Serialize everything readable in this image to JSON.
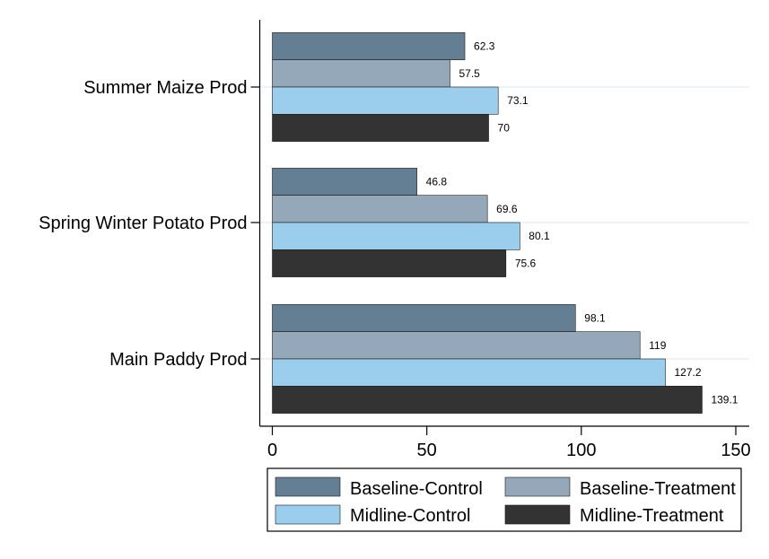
{
  "chart_data": {
    "type": "bar",
    "orientation": "horizontal",
    "categories": [
      "Summer Maize Prod",
      "Spring Winter Potato Prod",
      "Main Paddy Prod"
    ],
    "series": [
      {
        "name": "Baseline-Control",
        "color": "#647f94",
        "values": [
          62.3,
          46.8,
          98.1
        ]
      },
      {
        "name": "Baseline-Treatment",
        "color": "#94a8b9",
        "values": [
          57.5,
          69.6,
          119
        ]
      },
      {
        "name": "Midline-Control",
        "color": "#9bcdec",
        "values": [
          73.1,
          80.1,
          127.2
        ]
      },
      {
        "name": "Midline-Treatment",
        "color": "#333333",
        "values": [
          70,
          75.6,
          139.1
        ]
      }
    ],
    "data_labels": [
      [
        "62.3",
        "57.5",
        "73.1",
        "70"
      ],
      [
        "46.8",
        "69.6",
        "80.1",
        "75.6"
      ],
      [
        "98.1",
        "119",
        "127.2",
        "139.1"
      ]
    ],
    "x_ticks": [
      0,
      50,
      100,
      150
    ],
    "xlim": [
      0,
      150
    ],
    "grid": true,
    "legend_position": "bottom",
    "title": "",
    "xlabel": "",
    "ylabel": ""
  }
}
